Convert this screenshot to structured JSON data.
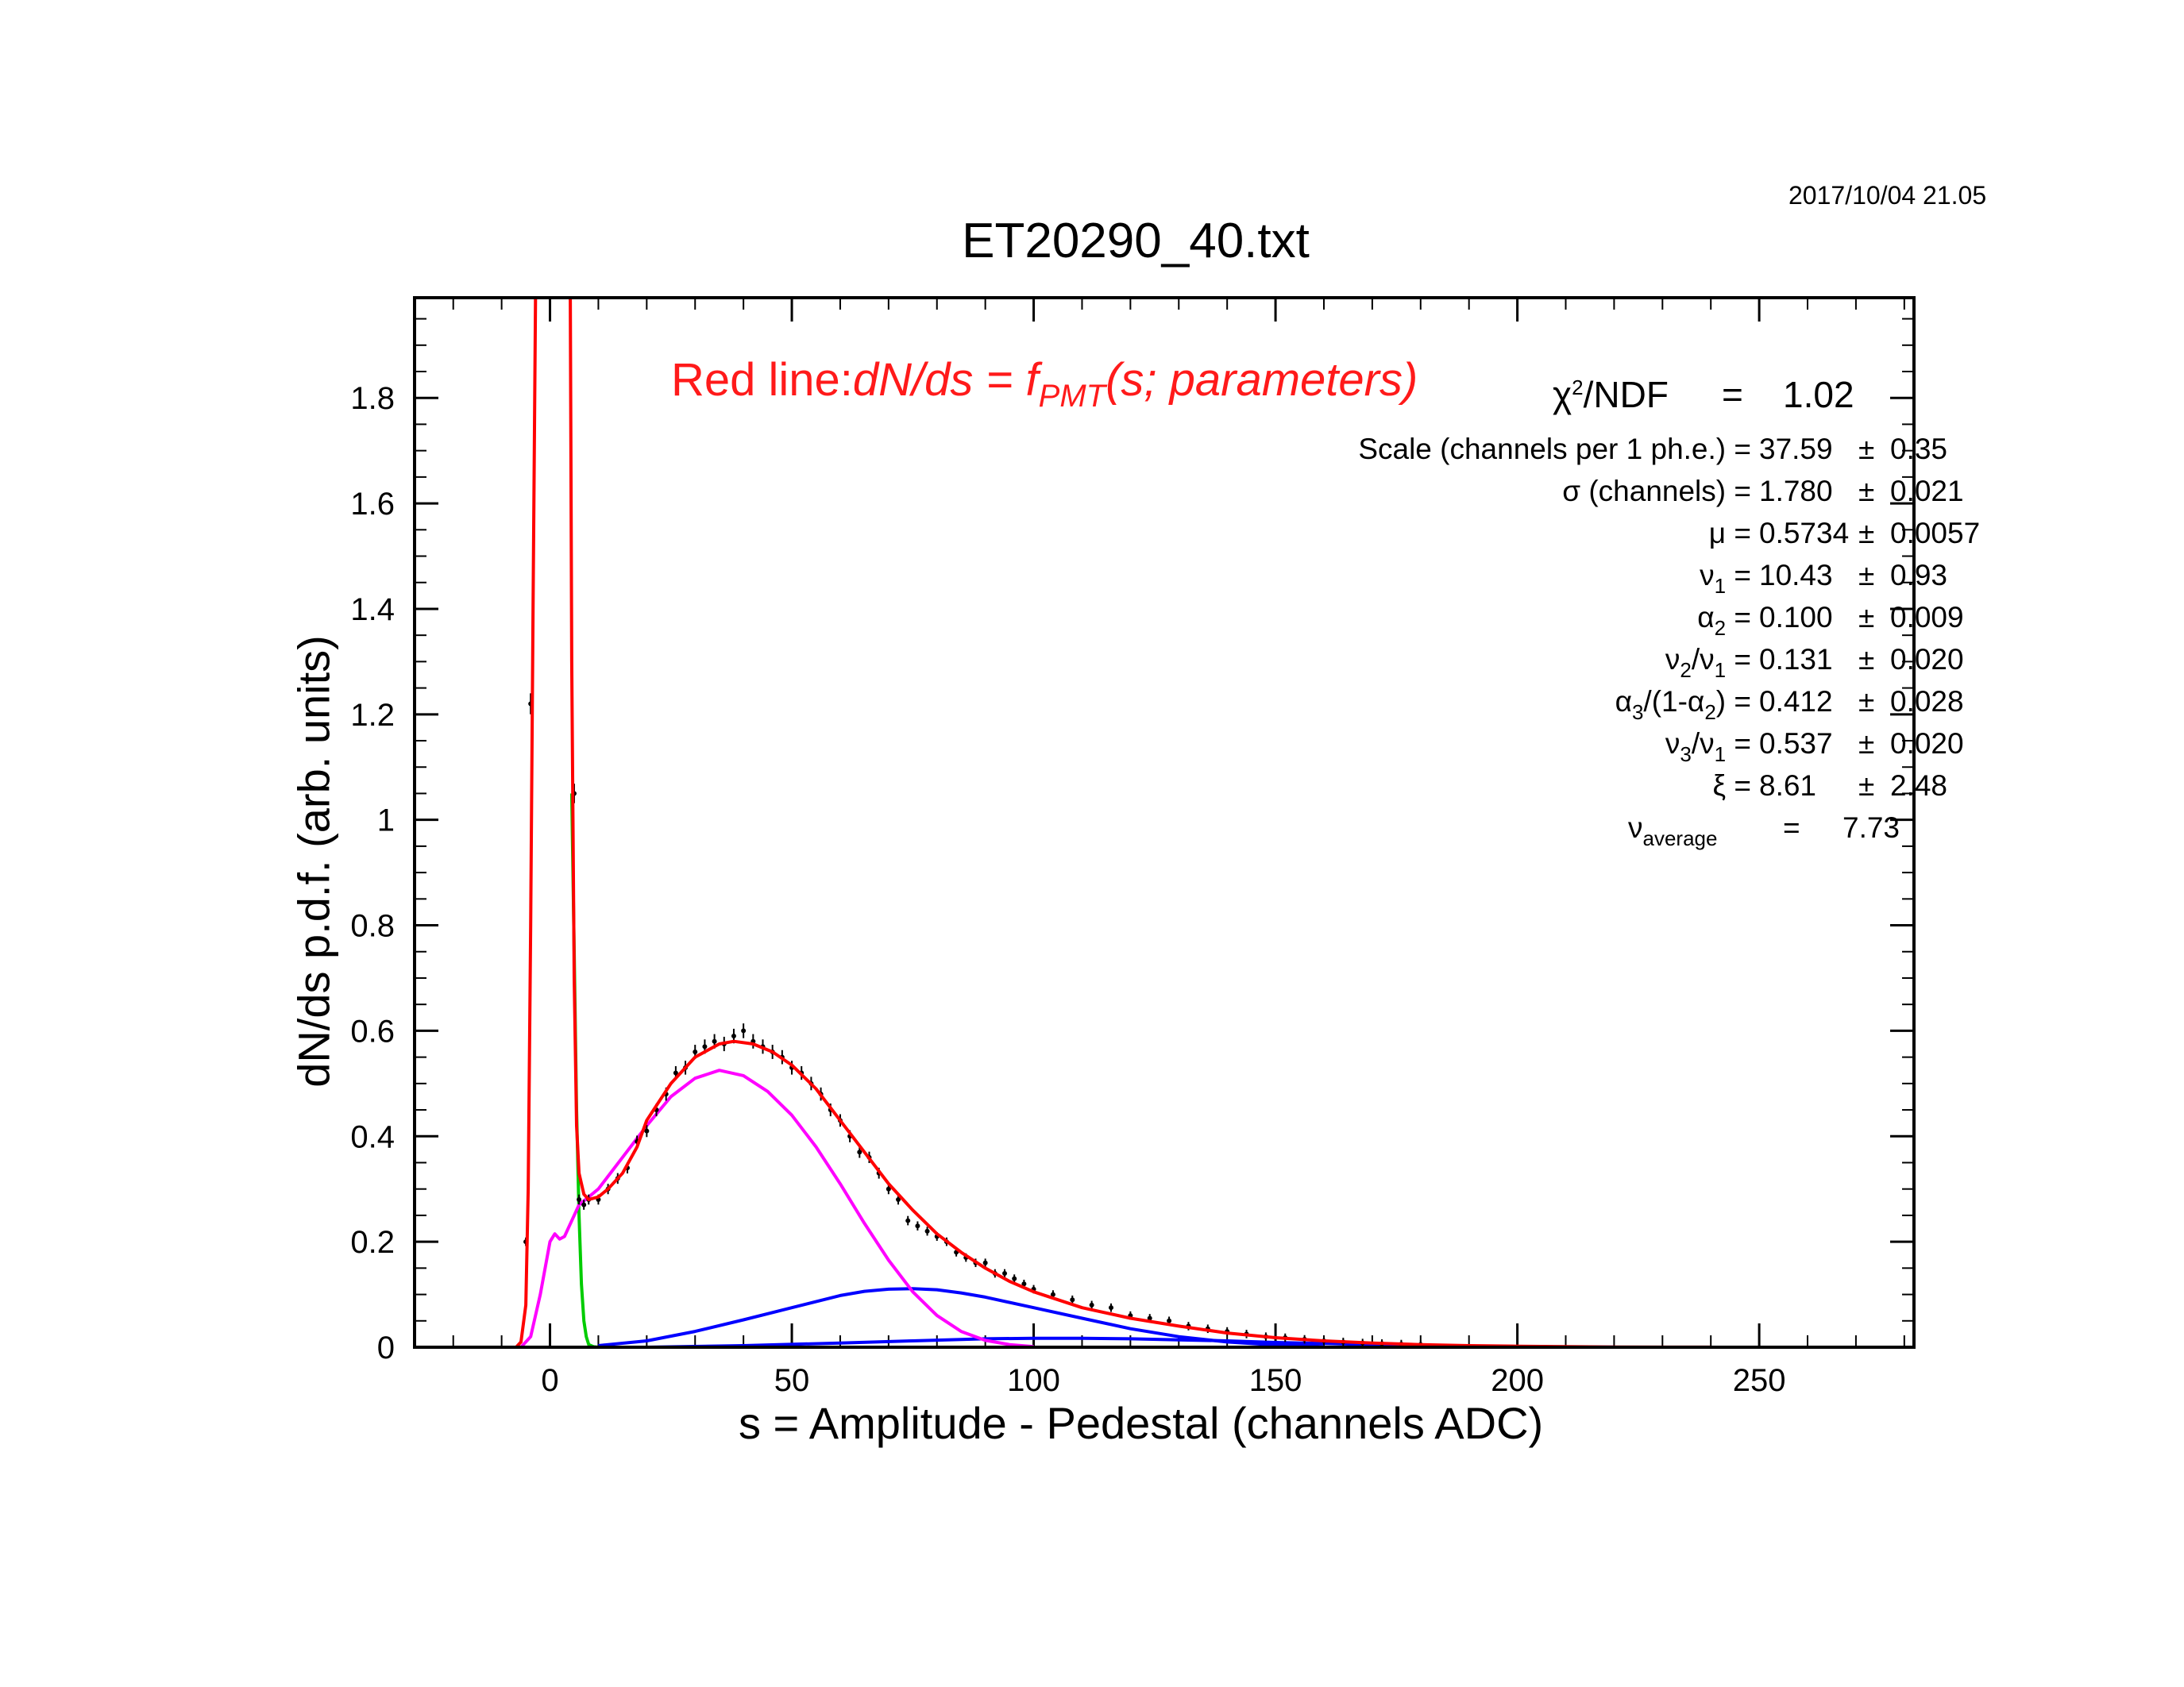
{
  "header": {
    "date": "2017/10/04   21.05",
    "title": "ET20290_40.txt"
  },
  "fit_label": {
    "prefix": "Red line:",
    "formula_a": "dN/ds = f",
    "formula_sub": "PMT",
    "formula_b": "(s; parameters)"
  },
  "fit_results": {
    "chi2": {
      "label_pre": "χ",
      "label_sup": "2",
      "label_post": "/NDF",
      "eq": "=",
      "value": "1.02"
    },
    "params": [
      {
        "label": "Scale (channels per 1 ph.e.) =",
        "value": "37.59",
        "pm": "±",
        "error": "0.35"
      },
      {
        "label": "σ (channels) =",
        "value": "1.780",
        "pm": "±",
        "error": "0.021"
      },
      {
        "label": "μ  =",
        "value": "0.5734",
        "pm": "±",
        "error": "0.0057"
      },
      {
        "label_html_base": "ν",
        "label_sub": "1",
        "label_tail": " =",
        "value": "10.43",
        "pm": "±",
        "error": "0.93"
      },
      {
        "label_html_base": "α",
        "label_sub": "2",
        "label_tail": " =",
        "value": "0.100",
        "pm": "±",
        "error": "0.009"
      },
      {
        "label_html_base": "ν",
        "label_sub": "2",
        "label_mid": "/ν",
        "label_sub2": "1",
        "label_tail": " =",
        "value": "0.131",
        "pm": "±",
        "error": "0.020"
      },
      {
        "label_html_base": "α",
        "label_sub": "3",
        "label_mid": "/(1-α",
        "label_sub2": "2",
        "label_tail": ") =",
        "value": "0.412",
        "pm": "±",
        "error": "0.028"
      },
      {
        "label_html_base": "ν",
        "label_sub": "3",
        "label_mid": "/ν",
        "label_sub2": "1",
        "label_tail": " =",
        "value": "0.537",
        "pm": "±",
        "error": "0.020"
      },
      {
        "label": "ξ  =",
        "value": "8.61",
        "pm": "±",
        "error": "2.48"
      }
    ],
    "nu_average": {
      "base": "ν",
      "sub": "average",
      "eq": "=",
      "value": "7.73"
    }
  },
  "colors": {
    "fit": "#ff0000",
    "pedestal": "#00cc00",
    "single_pe": "#ff00ff",
    "multi_pe": "#0000ff",
    "data": "#000000"
  },
  "chart_data": {
    "type": "line",
    "title": "ET20290_40.txt",
    "xlabel": "s = Amplitude - Pedestal (channels ADC)",
    "ylabel": "dN/ds p.d.f. (arb. units)",
    "xlim": [
      -28,
      282
    ],
    "ylim": [
      0,
      1.99
    ],
    "xticks": [
      0,
      50,
      100,
      150,
      200,
      250
    ],
    "yticks": [
      0,
      0.2,
      0.4,
      0.6,
      0.8,
      1,
      1.2,
      1.4,
      1.6,
      1.8
    ],
    "ytick_labels": [
      "0",
      "0.2",
      "0.4",
      "0.6",
      "0.8",
      "1",
      "1.2",
      "1.4",
      "1.6",
      "1.8"
    ],
    "series": [
      {
        "role": "fit",
        "x": [
          -7,
          -6,
          -5,
          -4.5,
          -4,
          -3.5,
          -3,
          4.2,
          4.5,
          5,
          5.5,
          6,
          7,
          8,
          10,
          12,
          15,
          18,
          20,
          25,
          30,
          35,
          38,
          42,
          46,
          50,
          55,
          60,
          65,
          70,
          75,
          80,
          85,
          90,
          95,
          100,
          110,
          120,
          130,
          140,
          150,
          160,
          170,
          180,
          190,
          200,
          210,
          220,
          230,
          240
        ],
        "y": [
          0,
          0.01,
          0.08,
          0.3,
          0.8,
          1.4,
          1.99,
          1.99,
          1.3,
          0.7,
          0.42,
          0.33,
          0.29,
          0.28,
          0.285,
          0.3,
          0.33,
          0.38,
          0.43,
          0.5,
          0.55,
          0.575,
          0.58,
          0.575,
          0.56,
          0.535,
          0.49,
          0.43,
          0.37,
          0.31,
          0.26,
          0.215,
          0.18,
          0.15,
          0.125,
          0.105,
          0.075,
          0.055,
          0.04,
          0.027,
          0.018,
          0.012,
          0.008,
          0.005,
          0.003,
          0.002,
          0.001,
          0.0005,
          0.0002,
          0.0001
        ]
      },
      {
        "role": "pedestal",
        "x": [
          4.5,
          5,
          5.5,
          6,
          6.5,
          7,
          7.5,
          8,
          9,
          10,
          15,
          50,
          100,
          150
        ],
        "y": [
          1.05,
          0.75,
          0.45,
          0.25,
          0.12,
          0.05,
          0.02,
          0.005,
          0.001,
          0,
          0,
          0,
          0,
          0
        ]
      },
      {
        "role": "single_pe",
        "x": [
          -6,
          -4,
          -2,
          0,
          1,
          2,
          3,
          4,
          5,
          6,
          8,
          10,
          15,
          20,
          25,
          30,
          35,
          40,
          45,
          50,
          55,
          60,
          65,
          70,
          75,
          80,
          85,
          90,
          95,
          100
        ],
        "y": [
          0,
          0.02,
          0.1,
          0.2,
          0.215,
          0.205,
          0.21,
          0.23,
          0.25,
          0.27,
          0.285,
          0.3,
          0.36,
          0.42,
          0.475,
          0.51,
          0.525,
          0.515,
          0.485,
          0.44,
          0.38,
          0.31,
          0.235,
          0.165,
          0.105,
          0.06,
          0.03,
          0.013,
          0.005,
          0.001
        ]
      },
      {
        "role": "multi_pe_2",
        "x": [
          10,
          20,
          30,
          40,
          50,
          60,
          65,
          70,
          75,
          80,
          85,
          90,
          100,
          110,
          120,
          130,
          140,
          150,
          160
        ],
        "y": [
          0.003,
          0.012,
          0.03,
          0.052,
          0.075,
          0.098,
          0.106,
          0.11,
          0.111,
          0.109,
          0.103,
          0.095,
          0.075,
          0.055,
          0.035,
          0.02,
          0.01,
          0.004,
          0.001
        ]
      },
      {
        "role": "multi_pe_3",
        "x": [
          20,
          40,
          60,
          75,
          90,
          100,
          110,
          120,
          130,
          140,
          150,
          160,
          170,
          180,
          190,
          200,
          210,
          220
        ],
        "y": [
          0.0,
          0.003,
          0.008,
          0.012,
          0.016,
          0.017,
          0.017,
          0.016,
          0.014,
          0.012,
          0.009,
          0.007,
          0.005,
          0.003,
          0.002,
          0.001,
          0.0005,
          0.0002
        ]
      },
      {
        "role": "data",
        "x": [
          -5,
          -4,
          5,
          6,
          7,
          8,
          10,
          12,
          14,
          16,
          18,
          20,
          22,
          24,
          26,
          28,
          30,
          32,
          34,
          36,
          38,
          40,
          42,
          44,
          46,
          48,
          50,
          52,
          54,
          56,
          58,
          60,
          62,
          64,
          66,
          68,
          70,
          72,
          74,
          76,
          78,
          80,
          82,
          84,
          86,
          88,
          90,
          92,
          94,
          96,
          98,
          100,
          104,
          108,
          112,
          116,
          120,
          124,
          128,
          132,
          136,
          140,
          144,
          148,
          152,
          156,
          160,
          164,
          168,
          172,
          176,
          180
        ],
        "y": [
          0.2,
          1.22,
          1.05,
          0.28,
          0.27,
          0.28,
          0.28,
          0.3,
          0.32,
          0.34,
          0.39,
          0.41,
          0.45,
          0.48,
          0.52,
          0.53,
          0.56,
          0.57,
          0.58,
          0.575,
          0.59,
          0.6,
          0.58,
          0.57,
          0.56,
          0.55,
          0.53,
          0.52,
          0.5,
          0.48,
          0.45,
          0.43,
          0.4,
          0.37,
          0.36,
          0.33,
          0.3,
          0.28,
          0.24,
          0.23,
          0.22,
          0.21,
          0.2,
          0.18,
          0.17,
          0.16,
          0.16,
          0.14,
          0.14,
          0.13,
          0.12,
          0.11,
          0.1,
          0.09,
          0.08,
          0.075,
          0.06,
          0.055,
          0.05,
          0.04,
          0.035,
          0.03,
          0.025,
          0.02,
          0.018,
          0.015,
          0.012,
          0.01,
          0.008,
          0.007,
          0.006,
          0.005
        ]
      }
    ]
  }
}
